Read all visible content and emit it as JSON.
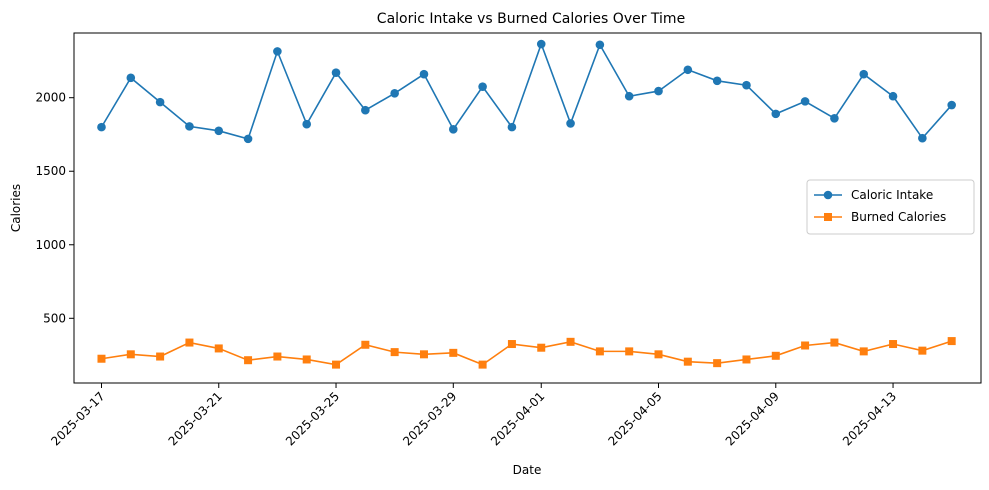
{
  "chart_data": {
    "type": "line",
    "title": "Caloric Intake vs Burned Calories Over Time",
    "xlabel": "Date",
    "ylabel": "Calories",
    "x": [
      "2025-03-17",
      "2025-03-18",
      "2025-03-19",
      "2025-03-20",
      "2025-03-21",
      "2025-03-22",
      "2025-03-23",
      "2025-03-24",
      "2025-03-25",
      "2025-03-26",
      "2025-03-27",
      "2025-03-28",
      "2025-03-29",
      "2025-03-30",
      "2025-03-31",
      "2025-04-01",
      "2025-04-02",
      "2025-04-03",
      "2025-04-04",
      "2025-04-05",
      "2025-04-06",
      "2025-04-07",
      "2025-04-08",
      "2025-04-09",
      "2025-04-10",
      "2025-04-11",
      "2025-04-12",
      "2025-04-13",
      "2025-04-14",
      "2025-04-15"
    ],
    "x_ticks": [
      "2025-03-17",
      "2025-03-21",
      "2025-03-25",
      "2025-03-29",
      "2025-04-01",
      "2025-04-05",
      "2025-04-09",
      "2025-04-13"
    ],
    "y_ticks": [
      500,
      1000,
      1500,
      2000
    ],
    "ylim": [
      60,
      2440
    ],
    "xlim": [
      "2025-03-16T01:30",
      "2025-04-16T00:00"
    ],
    "grid": false,
    "legend_position": "center-right",
    "series": [
      {
        "name": "Caloric Intake",
        "color": "#1f77b4",
        "marker": "circle",
        "values": [
          1800,
          2135,
          1970,
          1805,
          1775,
          1720,
          2315,
          1820,
          2170,
          1915,
          2030,
          2160,
          1785,
          2075,
          1800,
          2365,
          1825,
          2360,
          2010,
          2045,
          2190,
          2115,
          2085,
          1890,
          1975,
          1860,
          2160,
          2010,
          1725,
          1950
        ]
      },
      {
        "name": "Burned Calories",
        "color": "#ff7f0e",
        "marker": "square",
        "values": [
          225,
          255,
          240,
          335,
          295,
          215,
          240,
          220,
          185,
          320,
          270,
          255,
          265,
          185,
          325,
          300,
          340,
          275,
          275,
          255,
          205,
          195,
          220,
          245,
          315,
          335,
          275,
          325,
          280,
          345
        ]
      }
    ]
  }
}
